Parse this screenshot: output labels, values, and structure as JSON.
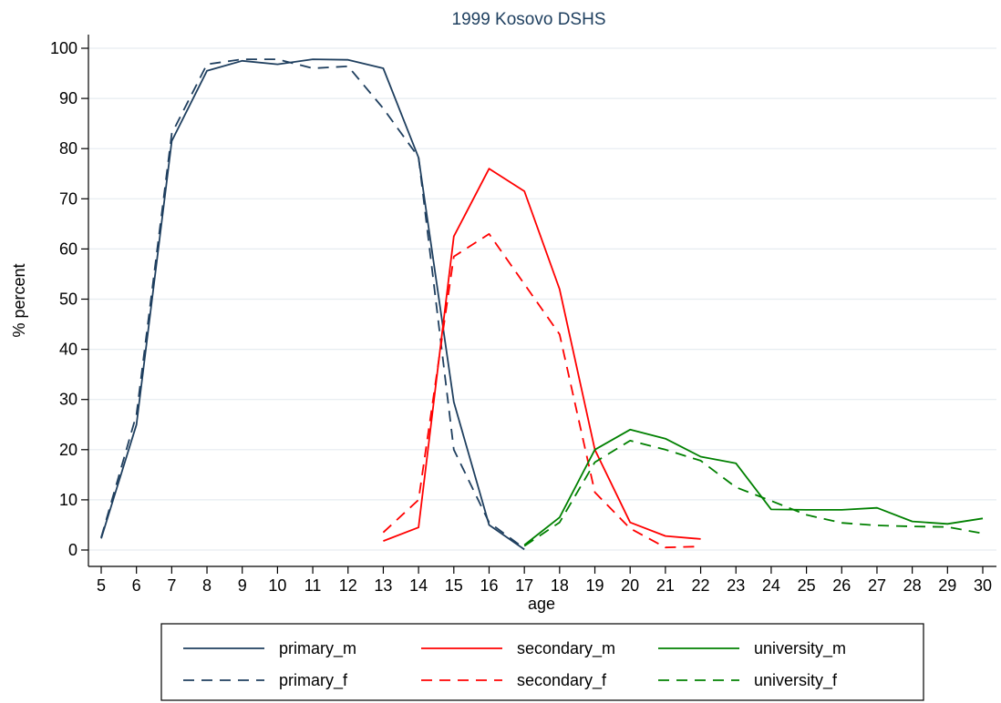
{
  "chart_data": {
    "type": "line",
    "title": "1999 Kosovo DSHS",
    "xlabel": "age",
    "ylabel": "% percent",
    "xlim": [
      5,
      30
    ],
    "ylim": [
      0,
      100
    ],
    "xticks": [
      5,
      6,
      7,
      8,
      9,
      10,
      11,
      12,
      13,
      14,
      15,
      16,
      17,
      18,
      19,
      20,
      21,
      22,
      23,
      24,
      25,
      26,
      27,
      28,
      29,
      30
    ],
    "yticks": [
      0,
      10,
      20,
      30,
      40,
      50,
      60,
      70,
      80,
      90,
      100
    ],
    "grid": true,
    "legend_position": "bottom",
    "series": [
      {
        "name": "primary_m",
        "color": "#1f3f5f",
        "dash": "solid",
        "x": [
          5,
          6,
          7,
          8,
          9,
          10,
          11,
          12,
          13,
          14,
          15,
          16,
          17
        ],
        "y": [
          2.3,
          25,
          81.5,
          95.5,
          97.5,
          96.8,
          97.8,
          97.7,
          96,
          78.2,
          29.5,
          5,
          0.1
        ]
      },
      {
        "name": "primary_f",
        "color": "#1f3f5f",
        "dash": "dashed",
        "x": [
          5,
          6,
          7,
          8,
          9,
          10,
          11,
          12,
          13,
          14,
          15,
          16,
          17
        ],
        "y": [
          2.5,
          27,
          83,
          96.8,
          97.8,
          97.8,
          96,
          96.4,
          88,
          78.3,
          20,
          5.5,
          0.3
        ]
      },
      {
        "name": "secondary_m",
        "color": "#ff0000",
        "dash": "solid",
        "x": [
          13,
          14,
          15,
          16,
          17,
          18,
          19,
          20,
          21,
          22
        ],
        "y": [
          1.8,
          4.5,
          62.5,
          76,
          71.5,
          52,
          20,
          5.5,
          2.8,
          2.2
        ]
      },
      {
        "name": "secondary_f",
        "color": "#ff0000",
        "dash": "dashed",
        "x": [
          13,
          14,
          15,
          16,
          17,
          18,
          19,
          20,
          21,
          22
        ],
        "y": [
          3.5,
          10,
          58.5,
          63,
          53,
          43,
          11.5,
          4.3,
          0.5,
          0.7
        ]
      },
      {
        "name": "university_m",
        "color": "#008000",
        "dash": "solid",
        "x": [
          17,
          18,
          19,
          20,
          21,
          22,
          23,
          24,
          25,
          26,
          27,
          28,
          29,
          30
        ],
        "y": [
          1,
          6.5,
          20,
          24,
          22.2,
          18.6,
          17.3,
          8.1,
          8,
          8,
          8.4,
          5.7,
          5.2,
          6.3
        ]
      },
      {
        "name": "university_f",
        "color": "#008000",
        "dash": "dashed",
        "x": [
          17,
          18,
          19,
          20,
          21,
          22,
          23,
          24,
          25,
          26,
          27,
          28,
          29,
          30
        ],
        "y": [
          0.8,
          5.5,
          17.5,
          21.8,
          20,
          17.8,
          12.5,
          9.8,
          7,
          5.4,
          4.9,
          4.7,
          4.6,
          3.3
        ]
      }
    ]
  }
}
